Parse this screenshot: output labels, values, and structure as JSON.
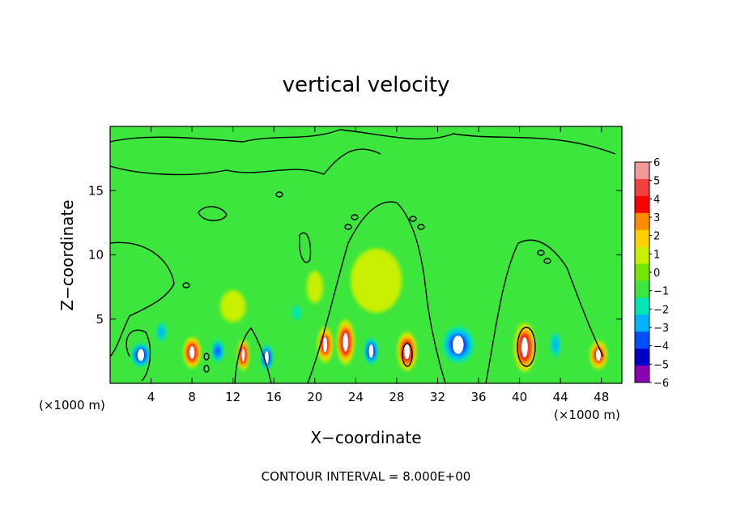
{
  "chart_data": {
    "type": "heatmap",
    "title": "vertical velocity",
    "xlabel": "X−coordinate",
    "ylabel": "Z−coordinate",
    "x_unit_left": "(×1000 m)",
    "x_unit_right": "(×1000 m)",
    "footer": "CONTOUR INTERVAL = 8.000E+00",
    "xlim": [
      0,
      50
    ],
    "ylim": [
      0,
      20
    ],
    "x_ticks": [
      "4",
      "8",
      "12",
      "16",
      "20",
      "24",
      "28",
      "32",
      "36",
      "40",
      "44",
      "48"
    ],
    "x_tick_values": [
      4,
      8,
      12,
      16,
      20,
      24,
      28,
      32,
      36,
      40,
      44,
      48
    ],
    "y_ticks": [
      "5",
      "10",
      "15"
    ],
    "y_tick_values": [
      5,
      10,
      15
    ],
    "colorbar": {
      "labels": [
        "6",
        "5",
        "4",
        "3",
        "2",
        "1",
        "0",
        "−1",
        "−2",
        "−3",
        "−4",
        "−5",
        "−6"
      ],
      "values": [
        6,
        5,
        4,
        3,
        2,
        1,
        0,
        -1,
        -2,
        -3,
        -4,
        -5,
        -6
      ],
      "colors": [
        "#f29a9a",
        "#f04040",
        "#ff0000",
        "#ff8c00",
        "#ffd000",
        "#c8f000",
        "#73e600",
        "#3ce63c",
        "#00e6b4",
        "#00b4ff",
        "#0050ff",
        "#0000c8",
        "#8c00b4"
      ]
    },
    "cells": [
      {
        "x": 3,
        "z": 2.2,
        "w": 2.2,
        "h": 2.2,
        "value": -5
      },
      {
        "x": 5,
        "z": 4,
        "w": 1.2,
        "h": 2,
        "value": -3
      },
      {
        "x": 8,
        "z": 2.4,
        "w": 1.6,
        "h": 2.4,
        "value": 6
      },
      {
        "x": 10.5,
        "z": 2.5,
        "w": 1.4,
        "h": 2.2,
        "value": -4
      },
      {
        "x": 13,
        "z": 2.2,
        "w": 1,
        "h": 2.4,
        "value": 6
      },
      {
        "x": 15.3,
        "z": 2,
        "w": 1.3,
        "h": 2.4,
        "value": -5
      },
      {
        "x": 18.2,
        "z": 5.5,
        "w": 1.4,
        "h": 1.8,
        "value": -2
      },
      {
        "x": 21,
        "z": 3,
        "w": 1.4,
        "h": 2.8,
        "value": 5
      },
      {
        "x": 23,
        "z": 3.2,
        "w": 1.6,
        "h": 3.5,
        "value": 6
      },
      {
        "x": 25.5,
        "z": 2.5,
        "w": 1.5,
        "h": 2.5,
        "value": -5
      },
      {
        "x": 29,
        "z": 2.5,
        "w": 1.8,
        "h": 3,
        "value": 6
      },
      {
        "x": 34,
        "z": 3,
        "w": 3.6,
        "h": 3.4,
        "value": -5
      },
      {
        "x": 40.5,
        "z": 2.8,
        "w": 2,
        "h": 3.8,
        "value": 6
      },
      {
        "x": 43.5,
        "z": 3,
        "w": 1.2,
        "h": 2.6,
        "value": -3
      },
      {
        "x": 47.7,
        "z": 2.2,
        "w": 1.6,
        "h": 2.2,
        "value": 5
      },
      {
        "x": 20,
        "z": 7.5,
        "w": 1.6,
        "h": 2.5,
        "value": 1
      },
      {
        "x": 26,
        "z": 8,
        "w": 5,
        "h": 5,
        "value": 1
      },
      {
        "x": 12,
        "z": 6,
        "w": 2.5,
        "h": 2.5,
        "value": 1
      }
    ]
  }
}
